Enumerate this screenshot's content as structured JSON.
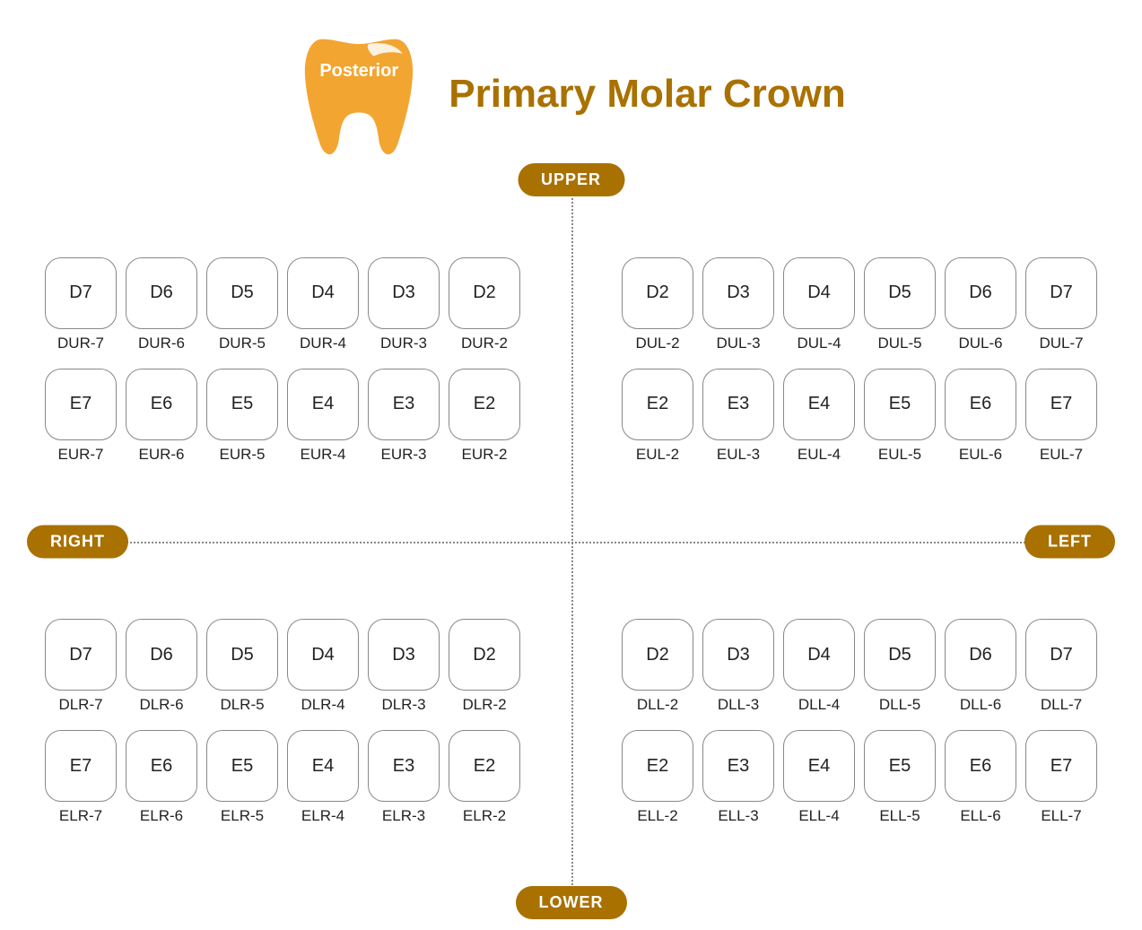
{
  "colors": {
    "accent": "#a97100",
    "pill_bg": "#a97100",
    "pill_text": "#ffffff",
    "tooth_fill": "#f2a531",
    "title": "#a97100",
    "divider": "#888888",
    "cell_border": "#888888",
    "background": "#ffffff"
  },
  "header": {
    "tooth_label": "Posterior",
    "title": "Primary Molar Crown"
  },
  "labels": {
    "upper": "UPPER",
    "lower": "LOWER",
    "right": "RIGHT",
    "left": "LEFT"
  },
  "quadrants": {
    "upper_right": {
      "rows": [
        {
          "cells": [
            "D7",
            "D6",
            "D5",
            "D4",
            "D3",
            "D2"
          ],
          "codes": [
            "DUR-7",
            "DUR-6",
            "DUR-5",
            "DUR-4",
            "DUR-3",
            "DUR-2"
          ]
        },
        {
          "cells": [
            "E7",
            "E6",
            "E5",
            "E4",
            "E3",
            "E2"
          ],
          "codes": [
            "EUR-7",
            "EUR-6",
            "EUR-5",
            "EUR-4",
            "EUR-3",
            "EUR-2"
          ]
        }
      ]
    },
    "upper_left": {
      "rows": [
        {
          "cells": [
            "D2",
            "D3",
            "D4",
            "D5",
            "D6",
            "D7"
          ],
          "codes": [
            "DUL-2",
            "DUL-3",
            "DUL-4",
            "DUL-5",
            "DUL-6",
            "DUL-7"
          ]
        },
        {
          "cells": [
            "E2",
            "E3",
            "E4",
            "E5",
            "E6",
            "E7"
          ],
          "codes": [
            "EUL-2",
            "EUL-3",
            "EUL-4",
            "EUL-5",
            "EUL-6",
            "EUL-7"
          ]
        }
      ]
    },
    "lower_right": {
      "rows": [
        {
          "cells": [
            "D7",
            "D6",
            "D5",
            "D4",
            "D3",
            "D2"
          ],
          "codes": [
            "DLR-7",
            "DLR-6",
            "DLR-5",
            "DLR-4",
            "DLR-3",
            "DLR-2"
          ]
        },
        {
          "cells": [
            "E7",
            "E6",
            "E5",
            "E4",
            "E3",
            "E2"
          ],
          "codes": [
            "ELR-7",
            "ELR-6",
            "ELR-5",
            "ELR-4",
            "ELR-3",
            "ELR-2"
          ]
        }
      ]
    },
    "lower_left": {
      "rows": [
        {
          "cells": [
            "D2",
            "D3",
            "D4",
            "D5",
            "D6",
            "D7"
          ],
          "codes": [
            "DLL-2",
            "DLL-3",
            "DLL-4",
            "DLL-5",
            "DLL-6",
            "DLL-7"
          ]
        },
        {
          "cells": [
            "E2",
            "E3",
            "E4",
            "E5",
            "E6",
            "E7"
          ],
          "codes": [
            "ELL-2",
            "ELL-3",
            "ELL-4",
            "ELL-5",
            "ELL-6",
            "ELL-7"
          ]
        }
      ]
    }
  }
}
